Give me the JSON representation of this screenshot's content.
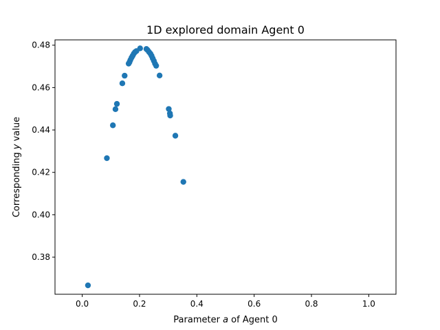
{
  "chart_data": {
    "type": "scatter",
    "title": "1D explored domain Agent 0",
    "xlabel": {
      "prefix": "Parameter ",
      "var": "a",
      "suffix": " of Agent 0"
    },
    "ylabel": {
      "prefix": "Corresponding ",
      "var": "y",
      "suffix": " value"
    },
    "xlim": [
      -0.095,
      1.095
    ],
    "ylim": [
      0.3625,
      0.4825
    ],
    "xticks": [
      {
        "value": 0.0,
        "label": "0.0"
      },
      {
        "value": 0.2,
        "label": "0.2"
      },
      {
        "value": 0.4,
        "label": "0.4"
      },
      {
        "value": 0.6,
        "label": "0.6"
      },
      {
        "value": 0.8,
        "label": "0.8"
      },
      {
        "value": 1.0,
        "label": "1.0"
      }
    ],
    "yticks": [
      {
        "value": 0.38,
        "label": "0.38"
      },
      {
        "value": 0.4,
        "label": "0.40"
      },
      {
        "value": 0.42,
        "label": "0.42"
      },
      {
        "value": 0.44,
        "label": "0.44"
      },
      {
        "value": 0.46,
        "label": "0.46"
      },
      {
        "value": 0.48,
        "label": "0.48"
      }
    ],
    "grid": false,
    "legend": "none",
    "point_color": "#1f77b4",
    "series": [
      {
        "x": [
          0.02,
          0.086,
          0.107,
          0.116,
          0.121,
          0.14,
          0.148,
          0.162,
          0.165,
          0.168,
          0.172,
          0.176,
          0.18,
          0.184,
          0.189,
          0.202,
          0.224,
          0.228,
          0.233,
          0.238,
          0.242,
          0.246,
          0.25,
          0.254,
          0.258,
          0.27,
          0.302,
          0.306,
          0.307,
          0.325,
          0.353
        ],
        "y": [
          0.3667,
          0.4267,
          0.4422,
          0.4498,
          0.4523,
          0.462,
          0.4656,
          0.4713,
          0.472,
          0.473,
          0.4741,
          0.475,
          0.476,
          0.4767,
          0.4772,
          0.4785,
          0.4782,
          0.4777,
          0.4768,
          0.476,
          0.475,
          0.4738,
          0.4726,
          0.4713,
          0.4703,
          0.4657,
          0.4499,
          0.4478,
          0.4468,
          0.4373,
          0.4155
        ]
      }
    ]
  }
}
